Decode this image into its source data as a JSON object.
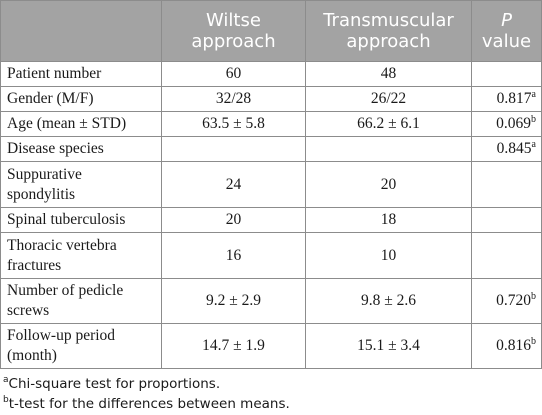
{
  "table": {
    "headers": {
      "col0": "",
      "col1_line1": "Wiltse",
      "col1_line2": "approach",
      "col2_line1": "Transmuscular",
      "col2_line2": "approach",
      "col3_line1": "P",
      "col3_line2": "value"
    },
    "rows": [
      {
        "label": "Patient number",
        "wiltse": "60",
        "transmuscular": "48",
        "p": "",
        "p_sup": ""
      },
      {
        "label": "Gender (M/F)",
        "wiltse": "32/28",
        "transmuscular": "26/22",
        "p": "0.817",
        "p_sup": "a"
      },
      {
        "label": "Age (mean ± STD)",
        "wiltse": "63.5 ± 5.8",
        "transmuscular": "66.2 ± 6.1",
        "p": "0.069",
        "p_sup": "b"
      },
      {
        "label": "Disease species",
        "wiltse": "",
        "transmuscular": "",
        "p": "0.845",
        "p_sup": "a"
      },
      {
        "label_line1": "Suppurative",
        "label_line2": "spondylitis",
        "wiltse": "24",
        "transmuscular": "20",
        "p": "",
        "p_sup": ""
      },
      {
        "label": "Spinal tuberculosis",
        "wiltse": "20",
        "transmuscular": "18",
        "p": "",
        "p_sup": ""
      },
      {
        "label_line1": "Thoracic vertebra",
        "label_line2": "fractures",
        "wiltse": "16",
        "transmuscular": "10",
        "p": "",
        "p_sup": ""
      },
      {
        "label_line1": "Number of pedicle",
        "label_line2": "screws",
        "wiltse": "9.2 ± 2.9",
        "transmuscular": "9.8 ± 2.6",
        "p": "0.720",
        "p_sup": "b"
      },
      {
        "label_line1": "Follow-up period",
        "label_line2": "(month)",
        "wiltse": "14.7 ± 1.9",
        "transmuscular": "15.1 ± 3.4",
        "p": "0.816",
        "p_sup": "b"
      }
    ]
  },
  "footnotes": [
    {
      "marker": "a",
      "text": "Chi-square test for proportions."
    },
    {
      "marker": "b",
      "text": "t-test for the differences between means."
    }
  ]
}
